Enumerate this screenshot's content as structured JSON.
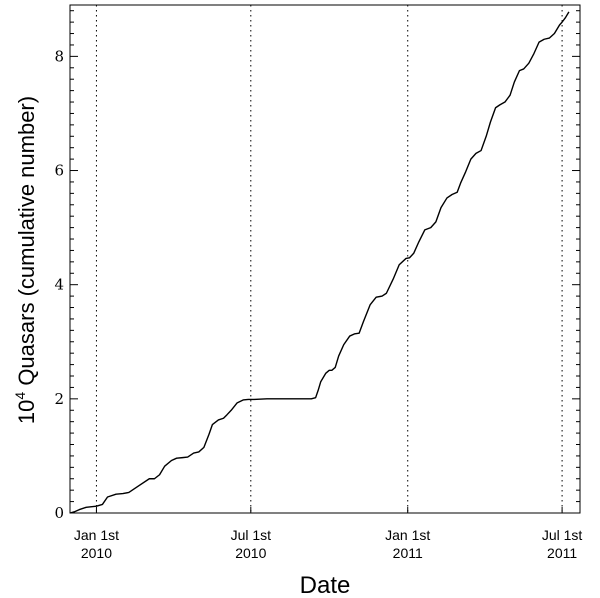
{
  "chart_data": {
    "type": "line",
    "title": "",
    "xlabel": "Date",
    "ylabel": {
      "base": "10",
      "exponent": "4",
      "rest": " Quasars (cumulative number)"
    },
    "xlim": [
      "2009-12-01",
      "2011-07-22"
    ],
    "ylim": [
      0,
      8.9
    ],
    "yticks": [
      {
        "value": 0,
        "label": "0"
      },
      {
        "value": 2,
        "label": "2"
      },
      {
        "value": 4,
        "label": "4"
      },
      {
        "value": 6,
        "label": "6"
      },
      {
        "value": 8,
        "label": "8"
      }
    ],
    "xticks": [
      {
        "date": "2010-01-01",
        "line1": "Jan 1st",
        "line2": "2010"
      },
      {
        "date": "2010-07-01",
        "line1": "Jul 1st",
        "line2": "2010"
      },
      {
        "date": "2011-01-01",
        "line1": "Jan 1st",
        "line2": "2011"
      },
      {
        "date": "2011-07-01",
        "line1": "Jul 1st",
        "line2": "2011"
      }
    ],
    "vertical_reference_lines": [
      "2010-01-01",
      "2010-07-01",
      "2011-01-01",
      "2011-07-01"
    ],
    "reference_line_style": "dotted",
    "grid": false,
    "series": [
      {
        "x": [
          "2009-12-01",
          "2009-12-06",
          "2009-12-12",
          "2009-12-20",
          "2010-01-01",
          "2010-01-08",
          "2010-01-14",
          "2010-01-24",
          "2010-02-01",
          "2010-02-08",
          "2010-02-20",
          "2010-03-04",
          "2010-03-10",
          "2010-03-16",
          "2010-03-22",
          "2010-03-30",
          "2010-04-05",
          "2010-04-12",
          "2010-04-18",
          "2010-04-25",
          "2010-05-01",
          "2010-05-07",
          "2010-05-13",
          "2010-05-17",
          "2010-05-24",
          "2010-05-30",
          "2010-06-03",
          "2010-06-08",
          "2010-06-15",
          "2010-06-22",
          "2010-06-28",
          "2010-07-05",
          "2010-07-20",
          "2010-08-15",
          "2010-09-10",
          "2010-09-15",
          "2010-09-18",
          "2010-09-21",
          "2010-09-27",
          "2010-10-01",
          "2010-10-04",
          "2010-10-08",
          "2010-10-12",
          "2010-10-18",
          "2010-10-25",
          "2010-10-31",
          "2010-11-05",
          "2010-11-10",
          "2010-11-18",
          "2010-11-25",
          "2010-12-02",
          "2010-12-07",
          "2010-12-15",
          "2010-12-22",
          "2010-12-30",
          "2011-01-03",
          "2011-01-08",
          "2011-01-14",
          "2011-01-21",
          "2011-01-28",
          "2011-02-03",
          "2011-02-09",
          "2011-02-16",
          "2011-02-22",
          "2011-02-28",
          "2011-03-04",
          "2011-03-10",
          "2011-03-16",
          "2011-03-22",
          "2011-03-28",
          "2011-04-03",
          "2011-04-08",
          "2011-04-14",
          "2011-04-19",
          "2011-04-25",
          "2011-05-01",
          "2011-05-06",
          "2011-05-12",
          "2011-05-17",
          "2011-05-23",
          "2011-05-29",
          "2011-06-04",
          "2011-06-10",
          "2011-06-16",
          "2011-06-22",
          "2011-06-28",
          "2011-07-01",
          "2011-07-05",
          "2011-07-09"
        ],
        "y": [
          0.0,
          0.02,
          0.06,
          0.1,
          0.12,
          0.15,
          0.28,
          0.33,
          0.34,
          0.36,
          0.48,
          0.6,
          0.6,
          0.67,
          0.82,
          0.92,
          0.96,
          0.97,
          0.98,
          1.05,
          1.07,
          1.15,
          1.38,
          1.55,
          1.63,
          1.66,
          1.72,
          1.8,
          1.93,
          1.98,
          1.99,
          1.99,
          2.0,
          2.0,
          2.0,
          2.02,
          2.15,
          2.3,
          2.45,
          2.5,
          2.5,
          2.55,
          2.75,
          2.95,
          3.1,
          3.14,
          3.15,
          3.35,
          3.65,
          3.78,
          3.8,
          3.85,
          4.1,
          4.35,
          4.46,
          4.47,
          4.55,
          4.75,
          4.96,
          5.0,
          5.1,
          5.35,
          5.52,
          5.58,
          5.62,
          5.78,
          5.98,
          6.2,
          6.3,
          6.35,
          6.6,
          6.85,
          7.1,
          7.15,
          7.2,
          7.32,
          7.55,
          7.75,
          7.78,
          7.88,
          8.05,
          8.25,
          8.3,
          8.32,
          8.4,
          8.55,
          8.6,
          8.68,
          8.78
        ]
      }
    ]
  }
}
